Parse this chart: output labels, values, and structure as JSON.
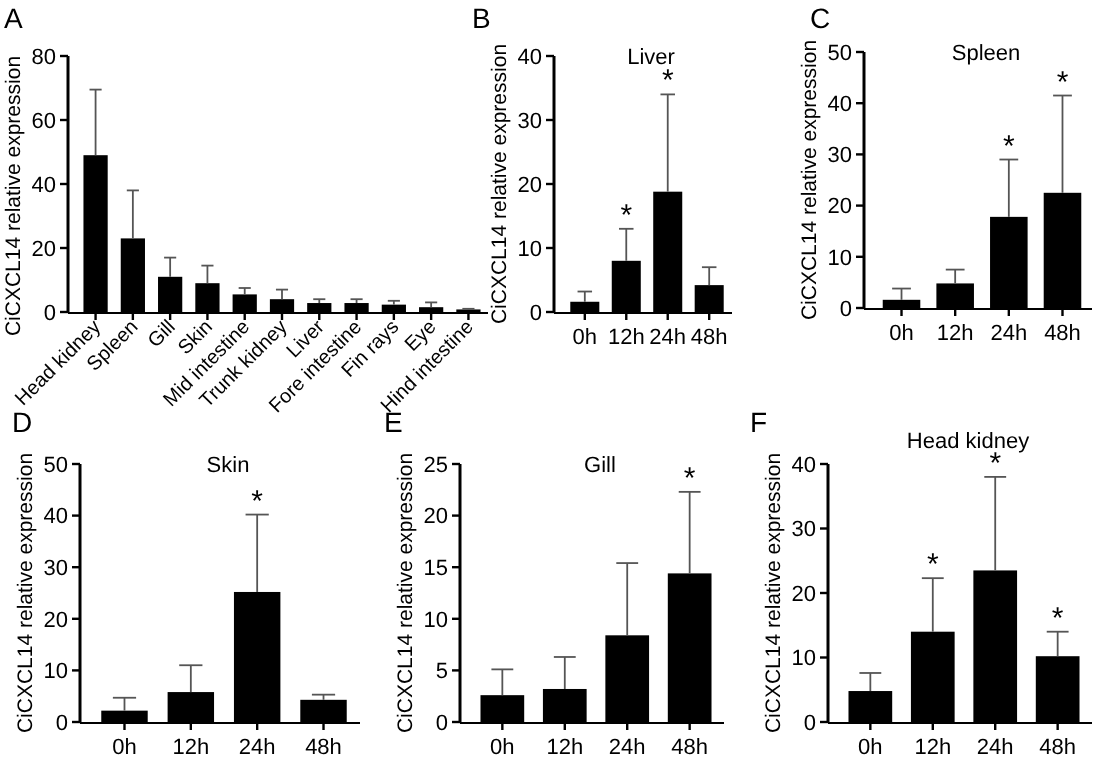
{
  "chart_data": [
    {
      "type": "bar",
      "ylabel": "CiCXCL14 relative expression",
      "annotations": [
        "A"
      ],
      "categories": [
        "Head kidney",
        "Spleen",
        "Gill",
        "Skin",
        "Mid intestine",
        "Trunk kidney",
        "Liver",
        "Fore intestine",
        "Fin rays",
        "Eye",
        "Hind intestine"
      ],
      "values": [
        49,
        23,
        11,
        9,
        5.5,
        4,
        2.8,
        2.8,
        2.3,
        1.5,
        0.8
      ],
      "errors": [
        [
          49,
          69.5
        ],
        [
          23,
          38
        ],
        [
          11,
          17
        ],
        [
          9,
          14.5
        ],
        [
          5.5,
          7.5
        ],
        [
          4,
          7
        ],
        [
          2.8,
          4
        ],
        [
          2.8,
          4
        ],
        [
          2.3,
          3.5
        ],
        [
          1.5,
          3
        ],
        [
          0.8,
          1
        ]
      ],
      "color": "#000000",
      "ylim": [
        0,
        80
      ],
      "yticks": [
        0,
        20,
        40,
        60,
        80
      ]
    },
    {
      "type": "bar",
      "title": "Liver",
      "ylabel": "CiCXCL14 relative expression",
      "annotations": [
        "B",
        {
          "text": "*",
          "x": "12h",
          "y": 13
        },
        {
          "text": "*",
          "x": "24h",
          "y": 34
        }
      ],
      "categories": [
        "0h",
        "12h",
        "24h",
        "48h"
      ],
      "values": [
        1.6,
        8,
        18.8,
        4.2
      ],
      "errors": [
        [
          1.6,
          3.2
        ],
        [
          8,
          13
        ],
        [
          18.8,
          34
        ],
        [
          4.2,
          7
        ]
      ],
      "color": "#000000",
      "ylim": [
        0,
        40
      ],
      "yticks": [
        0,
        10,
        20,
        30,
        40
      ]
    },
    {
      "type": "bar",
      "title": "Spleen",
      "ylabel": "CiCXCL14 relative expression",
      "annotations": [
        "C",
        {
          "text": "*",
          "x": "24h",
          "y": 29
        },
        {
          "text": "*",
          "x": "48h",
          "y": 41.5
        }
      ],
      "categories": [
        "0h",
        "12h",
        "24h",
        "48h"
      ],
      "values": [
        1.6,
        4.8,
        17.8,
        22.5
      ],
      "errors": [
        [
          1.6,
          3.8
        ],
        [
          4.8,
          7.5
        ],
        [
          17.8,
          29
        ],
        [
          22.5,
          41.5
        ]
      ],
      "color": "#000000",
      "ylim": [
        0,
        50
      ],
      "yticks": [
        0,
        10,
        20,
        30,
        40,
        50
      ]
    },
    {
      "type": "bar",
      "title": "Skin",
      "ylabel": "CiCXCL14 relative expression",
      "annotations": [
        "D",
        {
          "text": "*",
          "x": "24h",
          "y": 40.2
        }
      ],
      "categories": [
        "0h",
        "12h",
        "24h",
        "48h"
      ],
      "values": [
        2.2,
        5.8,
        25.2,
        4.3
      ],
      "errors": [
        [
          2.2,
          4.7
        ],
        [
          5.8,
          11
        ],
        [
          25.2,
          40.2
        ],
        [
          4.3,
          5.3
        ]
      ],
      "color": "#000000",
      "ylim": [
        0,
        50
      ],
      "yticks": [
        0,
        10,
        20,
        30,
        40,
        50
      ]
    },
    {
      "type": "bar",
      "title": "Gill",
      "ylabel": "CiCXCL14 relative expression",
      "annotations": [
        "E",
        {
          "text": "*",
          "x": "48h",
          "y": 22.3
        }
      ],
      "categories": [
        "0h",
        "12h",
        "24h",
        "48h"
      ],
      "values": [
        2.6,
        3.2,
        8.4,
        14.4
      ],
      "errors": [
        [
          2.6,
          5.1
        ],
        [
          3.2,
          6.3
        ],
        [
          8.4,
          15.4
        ],
        [
          14.4,
          22.3
        ]
      ],
      "color": "#000000",
      "ylim": [
        0,
        25
      ],
      "yticks": [
        0,
        5,
        10,
        15,
        20,
        25
      ]
    },
    {
      "type": "bar",
      "title": "Head kidney",
      "ylabel": "CiCXCL14 relative expression",
      "annotations": [
        "F",
        {
          "text": "*",
          "x": "12h",
          "y": 22.3
        },
        {
          "text": "*",
          "x": "24h",
          "y": 38
        },
        {
          "text": "*",
          "x": "48h",
          "y": 14
        }
      ],
      "categories": [
        "0h",
        "12h",
        "24h",
        "48h"
      ],
      "values": [
        4.8,
        14,
        23.5,
        10.2
      ],
      "errors": [
        [
          4.8,
          7.6
        ],
        [
          14,
          22.3
        ],
        [
          23.5,
          38
        ],
        [
          10.2,
          14
        ]
      ],
      "color": "#000000",
      "ylim": [
        0,
        40
      ],
      "yticks": [
        0,
        10,
        20,
        30,
        40
      ]
    }
  ]
}
